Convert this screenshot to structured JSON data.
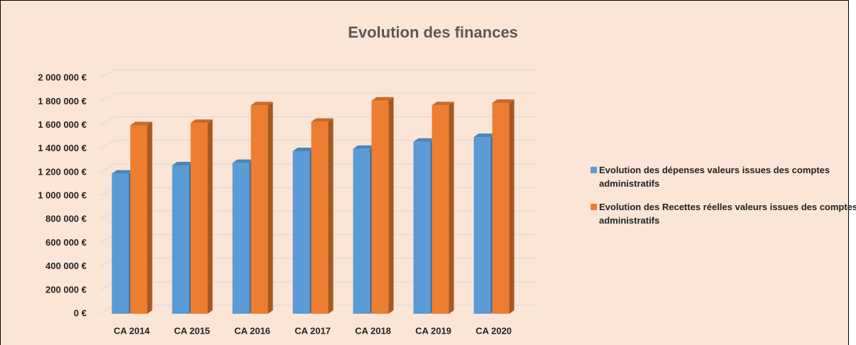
{
  "chart_data": {
    "type": "bar3d",
    "title": "Evolution des finances",
    "categories": [
      "CA 2014",
      "CA 2015",
      "CA 2016",
      "CA 2017",
      "CA 2018",
      "CA 2019",
      "CA 2020"
    ],
    "series": [
      {
        "name": "Evolution des dépenses valeurs issues des comptes administratifs",
        "color": "#5b9bd5",
        "values": [
          1190000,
          1260000,
          1280000,
          1380000,
          1400000,
          1460000,
          1500000
        ]
      },
      {
        "name": "Evolution des Recettes réelles valeurs issues des comptes administratifs",
        "color": "#ed7d31",
        "values": [
          1600000,
          1620000,
          1770000,
          1630000,
          1810000,
          1770000,
          1790000
        ]
      }
    ],
    "ylim": [
      0,
      2200000
    ],
    "yticks": [
      {
        "value": 0,
        "label": "0 €"
      },
      {
        "value": 200000,
        "label": "200 000 €"
      },
      {
        "value": 400000,
        "label": "400 000 €"
      },
      {
        "value": 600000,
        "label": "600 000 €"
      },
      {
        "value": 800000,
        "label": "800 000 €"
      },
      {
        "value": 1000000,
        "label": "1 000 000 €"
      },
      {
        "value": 1200000,
        "label": "1 200 000 €"
      },
      {
        "value": 1400000,
        "label": "1 400 000 €"
      },
      {
        "value": 1600000,
        "label": "1 600 000 €"
      },
      {
        "value": 1800000,
        "label": "1 800 000 €"
      },
      {
        "value": 2000000,
        "label": "2 000 000 €"
      }
    ],
    "grid": true,
    "legend": "right"
  }
}
